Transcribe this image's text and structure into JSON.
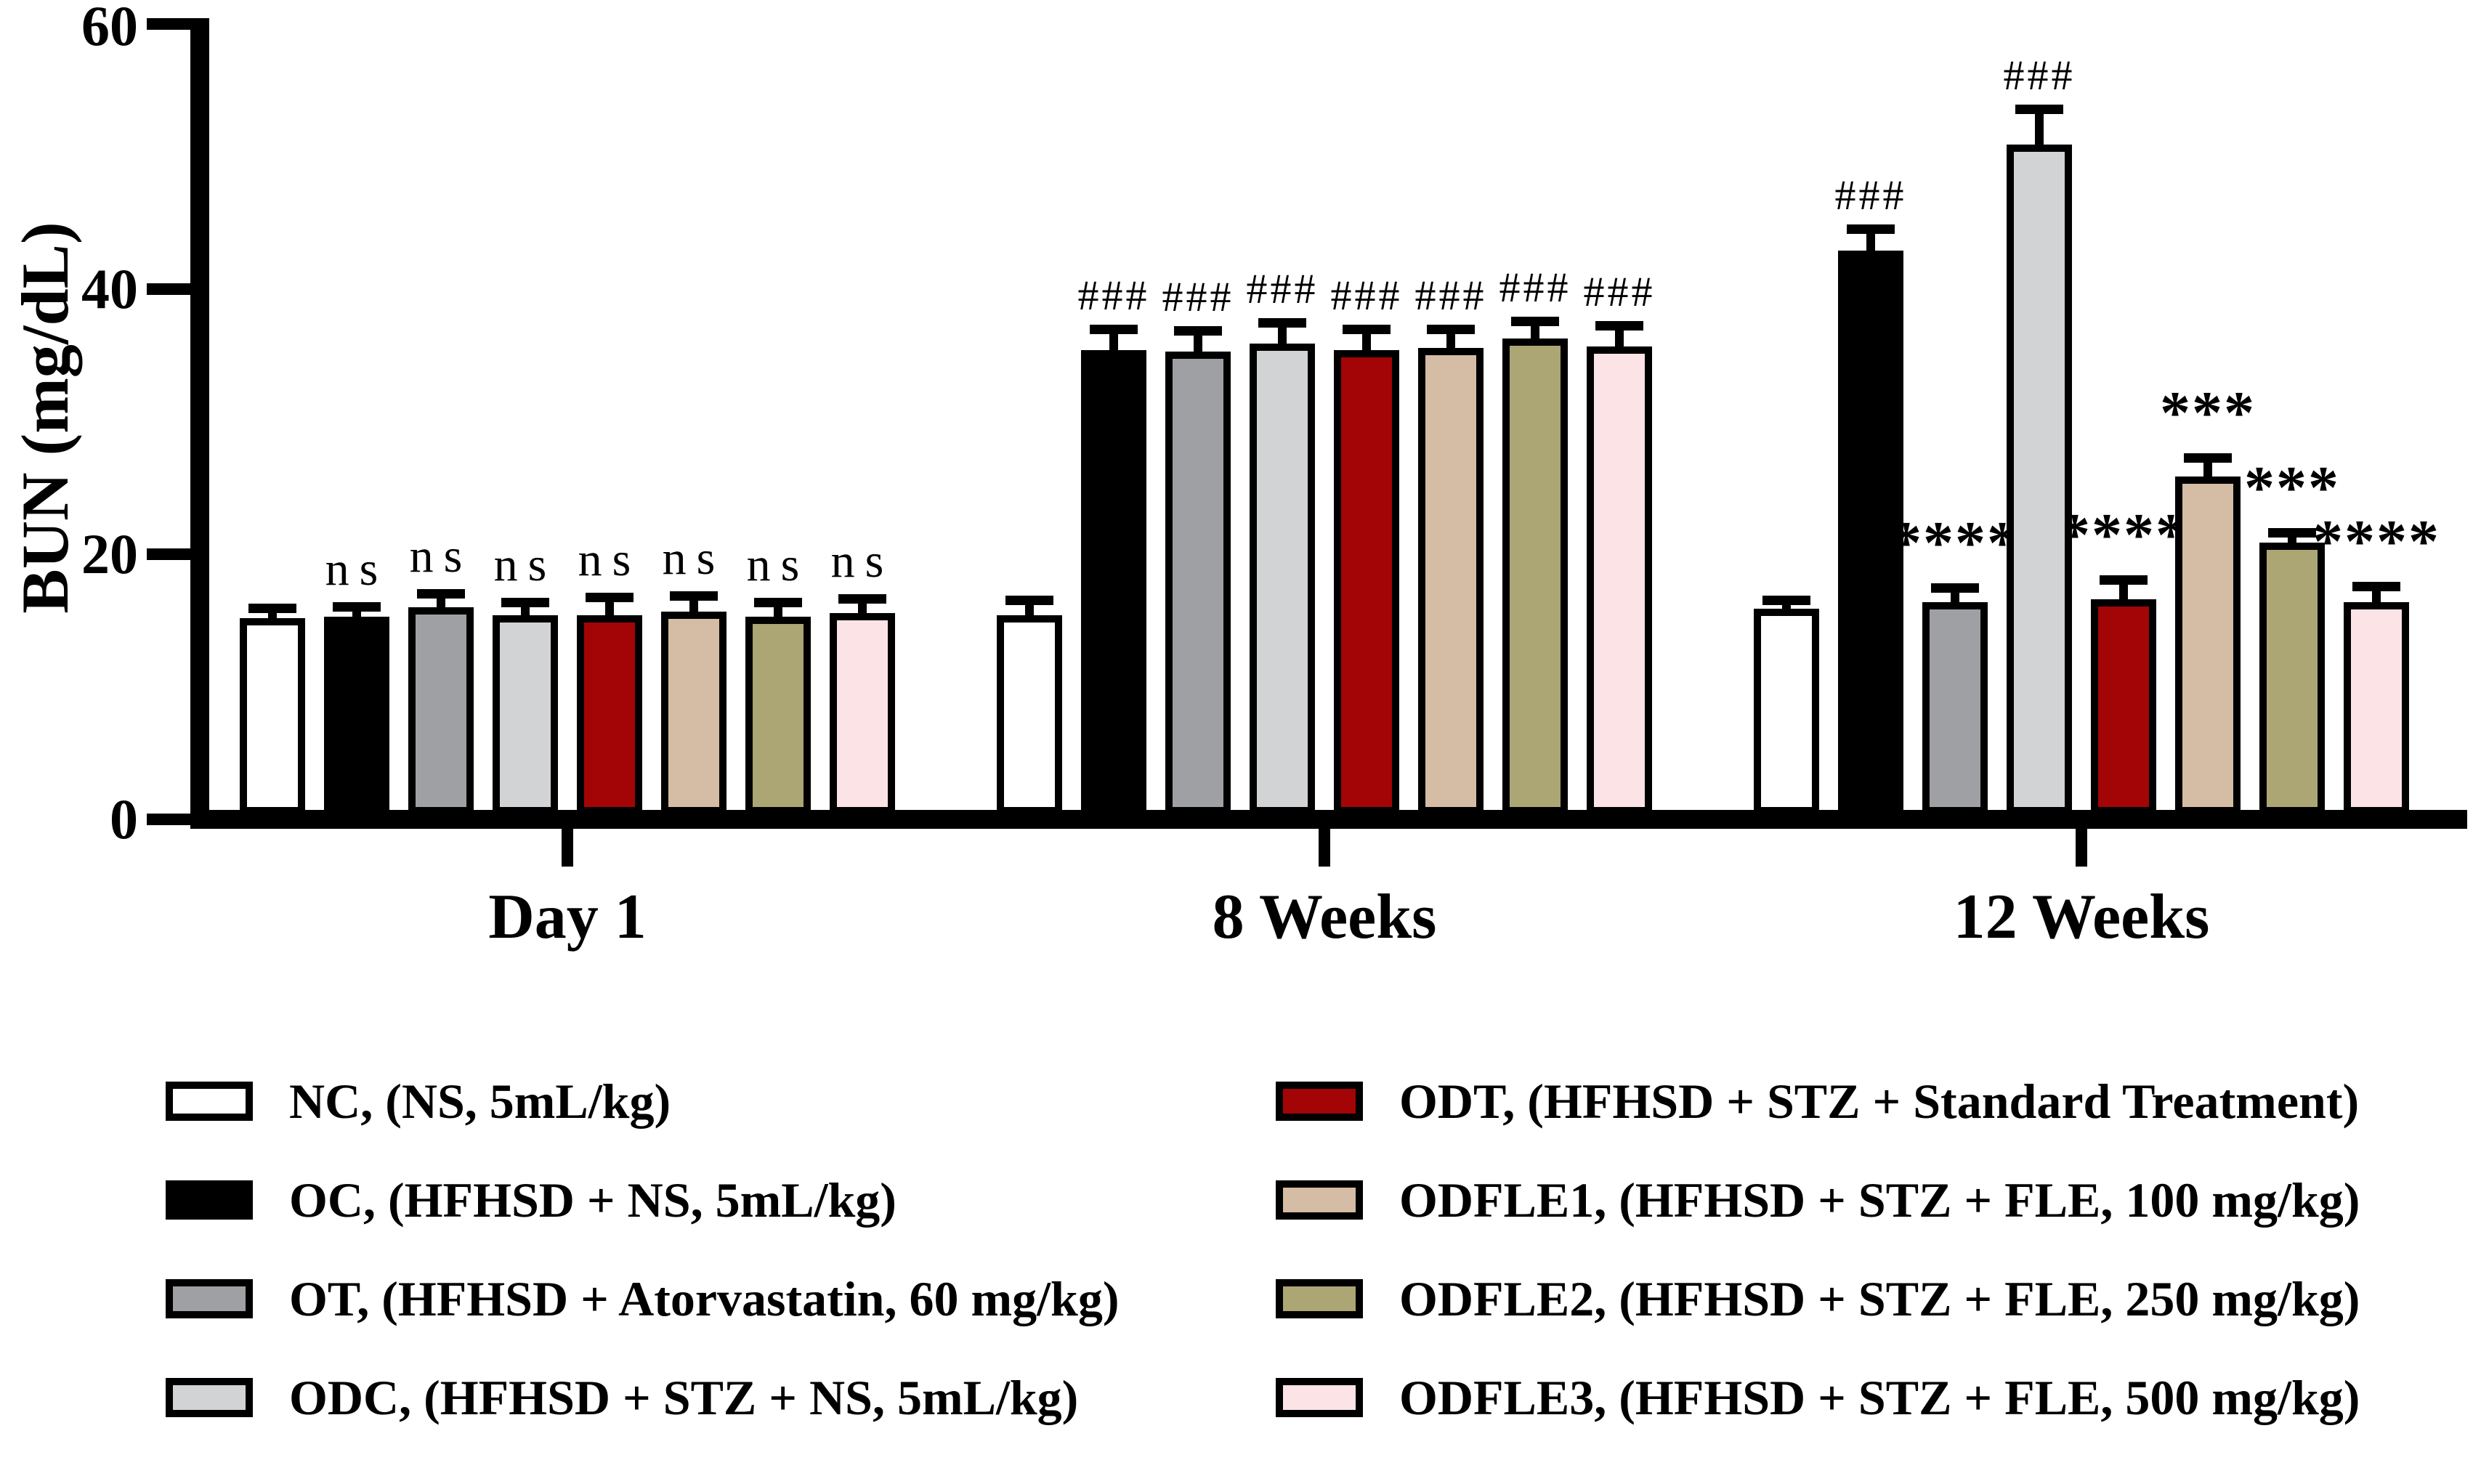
{
  "chart_data": {
    "type": "bar",
    "title": "",
    "ylabel": "BUN (mg/dL)",
    "xlabel": "",
    "ylim": [
      0,
      60
    ],
    "yticks": [
      0,
      20,
      40,
      60
    ],
    "grid": false,
    "legend_position": "bottom-two-columns",
    "categories": [
      "Day 1",
      "8 Weeks",
      "12 Weeks"
    ],
    "significance_note_symbols": [
      "ns",
      "###",
      "***",
      "****"
    ],
    "series": [
      {
        "id": "NC",
        "label": "NC, (NS, 5mL/kg)",
        "color": "#FFFFFF",
        "values": [
          14.8,
          15.0,
          15.5
        ],
        "errors": [
          0.4,
          0.8,
          0.3
        ],
        "sig": [
          "",
          "",
          ""
        ]
      },
      {
        "id": "OC",
        "label": "OC, (HFHSD + NS, 5mL/kg)",
        "color": "#000000",
        "values": [
          14.9,
          35.0,
          42.5
        ],
        "errors": [
          0.4,
          1.2,
          1.3
        ],
        "sig": [
          "ns",
          "###",
          "###"
        ]
      },
      {
        "id": "OT",
        "label": "OT, (HFHSD + Atorvastatin, 60 mg/kg)",
        "color": "#9FA0A4",
        "values": [
          15.6,
          34.9,
          16.0
        ],
        "errors": [
          0.7,
          1.2,
          0.7
        ],
        "sig": [
          "ns",
          "###",
          "****"
        ]
      },
      {
        "id": "ODC",
        "label": "ODC, (HFHSD + STZ + NS, 5mL/kg)",
        "color": "#D2D3D5",
        "values": [
          15.0,
          35.5,
          50.5
        ],
        "errors": [
          0.6,
          1.2,
          2.3
        ],
        "sig": [
          "ns",
          "###",
          "###"
        ]
      },
      {
        "id": "ODT",
        "label": "ODT, (HFHSD + STZ + Standard Treatment)",
        "color": "#A30406",
        "values": [
          15.0,
          35.0,
          16.2
        ],
        "errors": [
          1.0,
          1.2,
          1.1
        ],
        "sig": [
          "ns",
          "###",
          "****"
        ]
      },
      {
        "id": "ODFLE1",
        "label": "ODFLE1, (HFHSD + STZ + FLE, 100 mg/kg)",
        "color": "#D5BCA4",
        "values": [
          15.3,
          35.2,
          25.5
        ],
        "errors": [
          0.8,
          1.0,
          1.0
        ],
        "sig": [
          "ns",
          "###",
          "***"
        ]
      },
      {
        "id": "ODFLE2",
        "label": "ODFLE2, (HFHSD + STZ + FLE, 250 mg/kg)",
        "color": "#ABA674",
        "values": [
          14.9,
          35.9,
          20.5
        ],
        "errors": [
          0.7,
          0.9,
          0.4
        ],
        "sig": [
          "ns",
          "###",
          "***"
        ]
      },
      {
        "id": "ODFLE3",
        "label": "ODFLE3, (HFHSD + STZ + FLE, 500 mg/kg)",
        "color": "#FCE3E6",
        "values": [
          15.2,
          35.3,
          16.0
        ],
        "errors": [
          0.7,
          1.2,
          0.8
        ],
        "sig": [
          "ns",
          "###",
          "****"
        ]
      }
    ],
    "legend_columns": [
      [
        "NC",
        "OC",
        "OT",
        "ODC"
      ],
      [
        "ODT",
        "ODFLE1",
        "ODFLE2",
        "ODFLE3"
      ]
    ]
  }
}
